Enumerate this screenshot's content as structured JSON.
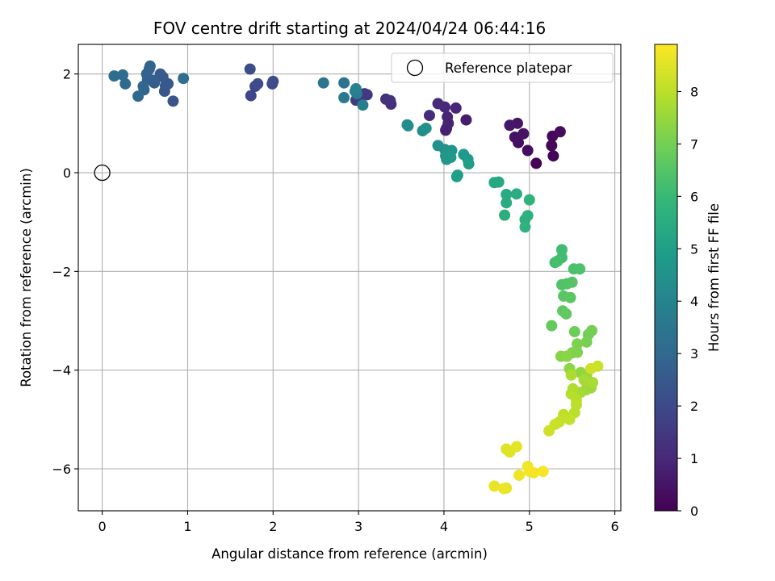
{
  "chart_data": {
    "type": "scatter",
    "title": "FOV centre drift starting at 2024/04/24 06:44:16",
    "xlabel": "Angular distance from reference (arcmin)",
    "ylabel": "Rotation from reference (arcmin)",
    "xlim": [
      -0.28,
      6.07
    ],
    "ylim": [
      -6.85,
      2.6
    ],
    "x_ticks": [
      0,
      1,
      2,
      3,
      4,
      5,
      6
    ],
    "y_ticks": [
      2,
      0,
      -2,
      -4,
      -6
    ],
    "x_tick_labels": [
      "0",
      "1",
      "2",
      "3",
      "4",
      "5",
      "6"
    ],
    "y_tick_labels": [
      "2",
      "0",
      "−2",
      "−4",
      "−6"
    ],
    "grid": true,
    "colormap": "viridis",
    "colorbar": {
      "label": "Hours from first FF file",
      "range": [
        0,
        8.9
      ],
      "ticks": [
        0,
        1,
        2,
        3,
        4,
        5,
        6,
        7,
        8
      ],
      "tick_labels": [
        "0",
        "1",
        "2",
        "3",
        "4",
        "5",
        "6",
        "7",
        "8"
      ]
    },
    "legend": {
      "placement": "top-right",
      "entries": [
        "Reference platepar"
      ]
    },
    "reference_point": {
      "x": 0,
      "y": 0
    },
    "points": [
      [
        5.08,
        0.19,
        0.05
      ],
      [
        5.28,
        0.34,
        0.1
      ],
      [
        5.26,
        0.55,
        0.15
      ],
      [
        5.27,
        0.74,
        0.2
      ],
      [
        5.36,
        0.83,
        0.25
      ],
      [
        4.98,
        0.45,
        0.3
      ],
      [
        4.87,
        0.61,
        0.35
      ],
      [
        4.83,
        0.72,
        0.4
      ],
      [
        4.93,
        0.79,
        0.45
      ],
      [
        4.86,
        1.0,
        0.5
      ],
      [
        4.77,
        0.96,
        0.55
      ],
      [
        4.26,
        1.07,
        0.7
      ],
      [
        4.03,
        0.9,
        0.75
      ],
      [
        4.02,
        0.86,
        0.8
      ],
      [
        4.05,
        1.0,
        0.85
      ],
      [
        4.04,
        1.13,
        0.9
      ],
      [
        4.14,
        1.31,
        0.95
      ],
      [
        4.01,
        1.33,
        1.0
      ],
      [
        3.93,
        1.4,
        1.05
      ],
      [
        3.83,
        1.16,
        1.1
      ],
      [
        3.38,
        1.39,
        1.2
      ],
      [
        3.37,
        1.46,
        1.25
      ],
      [
        3.32,
        1.49,
        1.3
      ],
      [
        3.1,
        1.58,
        1.4
      ],
      [
        3.04,
        1.55,
        1.45
      ],
      [
        3.07,
        1.6,
        1.5
      ],
      [
        2.97,
        1.47,
        1.55
      ],
      [
        1.74,
        1.56,
        1.9
      ],
      [
        1.79,
        1.75,
        1.95
      ],
      [
        1.82,
        1.8,
        2.0
      ],
      [
        1.99,
        1.8,
        2.05
      ],
      [
        2.0,
        1.85,
        2.1
      ],
      [
        1.73,
        2.1,
        2.15
      ],
      [
        0.83,
        1.45,
        2.3
      ],
      [
        0.73,
        1.65,
        2.35
      ],
      [
        0.74,
        1.76,
        2.4
      ],
      [
        0.77,
        1.8,
        2.45
      ],
      [
        0.71,
        1.94,
        2.5
      ],
      [
        0.68,
        2.0,
        2.55
      ],
      [
        0.61,
        1.82,
        2.6
      ],
      [
        0.59,
        1.87,
        2.65
      ],
      [
        0.53,
        1.89,
        2.7
      ],
      [
        0.52,
        2.0,
        2.75
      ],
      [
        0.55,
        2.1,
        2.8
      ],
      [
        0.56,
        2.16,
        2.85
      ],
      [
        0.49,
        1.68,
        2.9
      ],
      [
        0.48,
        1.75,
        2.95
      ],
      [
        0.42,
        1.55,
        3.0
      ],
      [
        0.27,
        1.8,
        3.05
      ],
      [
        0.24,
        1.98,
        3.1
      ],
      [
        0.14,
        1.96,
        3.15
      ],
      [
        0.95,
        1.91,
        3.2
      ],
      [
        2.59,
        1.82,
        3.45
      ],
      [
        2.83,
        1.82,
        3.5
      ],
      [
        2.83,
        1.52,
        3.6
      ],
      [
        2.98,
        1.6,
        3.7
      ],
      [
        3.05,
        1.37,
        3.8
      ],
      [
        2.96,
        1.65,
        3.85
      ],
      [
        2.97,
        1.7,
        3.9
      ],
      [
        3.57,
        0.97,
        4.3
      ],
      [
        3.58,
        0.95,
        4.35
      ],
      [
        3.75,
        0.85,
        4.4
      ],
      [
        3.79,
        0.9,
        4.45
      ],
      [
        3.93,
        0.55,
        4.5
      ],
      [
        4.01,
        0.47,
        4.55
      ],
      [
        4.09,
        0.45,
        4.6
      ],
      [
        4.02,
        0.34,
        4.65
      ],
      [
        4.03,
        0.27,
        4.7
      ],
      [
        4.08,
        0.31,
        4.75
      ],
      [
        4.23,
        0.37,
        4.8
      ],
      [
        4.28,
        0.27,
        4.85
      ],
      [
        4.29,
        0.18,
        4.9
      ],
      [
        4.16,
        -0.05,
        4.95
      ],
      [
        4.15,
        -0.08,
        5.0
      ],
      [
        4.59,
        -0.2,
        5.3
      ],
      [
        4.64,
        -0.19,
        5.35
      ],
      [
        4.73,
        -0.44,
        5.4
      ],
      [
        4.85,
        -0.43,
        5.45
      ],
      [
        4.73,
        -0.61,
        5.5
      ],
      [
        4.71,
        -0.86,
        5.55
      ],
      [
        4.95,
        -0.95,
        5.6
      ],
      [
        4.98,
        -0.87,
        5.65
      ],
      [
        4.95,
        -1.1,
        5.7
      ],
      [
        5.0,
        -0.55,
        5.75
      ],
      [
        5.38,
        -1.56,
        6.1
      ],
      [
        5.38,
        -1.72,
        6.15
      ],
      [
        5.3,
        -1.82,
        6.2
      ],
      [
        5.33,
        -1.79,
        6.25
      ],
      [
        5.52,
        -1.95,
        6.3
      ],
      [
        5.59,
        -1.95,
        6.35
      ],
      [
        5.38,
        -2.27,
        6.4
      ],
      [
        5.44,
        -2.25,
        6.45
      ],
      [
        5.5,
        -2.22,
        6.5
      ],
      [
        5.4,
        -2.5,
        6.55
      ],
      [
        5.48,
        -2.53,
        6.6
      ],
      [
        5.39,
        -2.8,
        6.65
      ],
      [
        5.43,
        -2.86,
        6.7
      ],
      [
        5.26,
        -3.1,
        6.75
      ],
      [
        5.53,
        -3.22,
        6.9
      ],
      [
        5.69,
        -3.28,
        6.95
      ],
      [
        5.73,
        -3.2,
        7.0
      ],
      [
        5.67,
        -3.43,
        7.05
      ],
      [
        5.56,
        -3.47,
        7.1
      ],
      [
        5.56,
        -3.64,
        7.15
      ],
      [
        5.5,
        -3.65,
        7.2
      ],
      [
        5.37,
        -3.72,
        7.25
      ],
      [
        5.44,
        -3.72,
        7.3
      ],
      [
        5.47,
        -3.97,
        7.35
      ],
      [
        5.6,
        -4.05,
        7.4
      ],
      [
        5.67,
        -4.09,
        7.45
      ],
      [
        5.7,
        -4.3,
        7.5
      ],
      [
        5.72,
        -4.36,
        7.55
      ],
      [
        5.66,
        -4.4,
        7.6
      ],
      [
        5.6,
        -4.45,
        7.65
      ],
      [
        5.64,
        -4.2,
        7.7
      ],
      [
        5.74,
        -4.25,
        7.75
      ],
      [
        5.49,
        -4.1,
        7.8
      ],
      [
        5.51,
        -4.38,
        7.85
      ],
      [
        5.49,
        -4.48,
        7.9
      ],
      [
        5.55,
        -4.6,
        7.95
      ],
      [
        5.55,
        -4.7,
        8.0
      ],
      [
        5.53,
        -4.86,
        8.0
      ],
      [
        5.4,
        -4.9,
        8.05
      ],
      [
        5.47,
        -5.0,
        8.1
      ],
      [
        5.35,
        -5.05,
        8.15
      ],
      [
        5.3,
        -5.1,
        8.2
      ],
      [
        5.23,
        -5.23,
        8.25
      ],
      [
        5.8,
        -3.92,
        8.2
      ],
      [
        5.72,
        -3.97,
        8.25
      ],
      [
        4.73,
        -5.6,
        8.45
      ],
      [
        4.77,
        -5.66,
        8.5
      ],
      [
        4.85,
        -5.55,
        8.55
      ],
      [
        4.73,
        -6.39,
        8.6
      ],
      [
        4.59,
        -6.35,
        8.62
      ],
      [
        4.7,
        -6.4,
        8.65
      ],
      [
        4.88,
        -6.13,
        8.7
      ],
      [
        4.98,
        -5.95,
        8.72
      ],
      [
        5.0,
        -6.05,
        8.75
      ],
      [
        5.05,
        -6.08,
        8.78
      ],
      [
        5.16,
        -6.05,
        8.8
      ]
    ]
  }
}
